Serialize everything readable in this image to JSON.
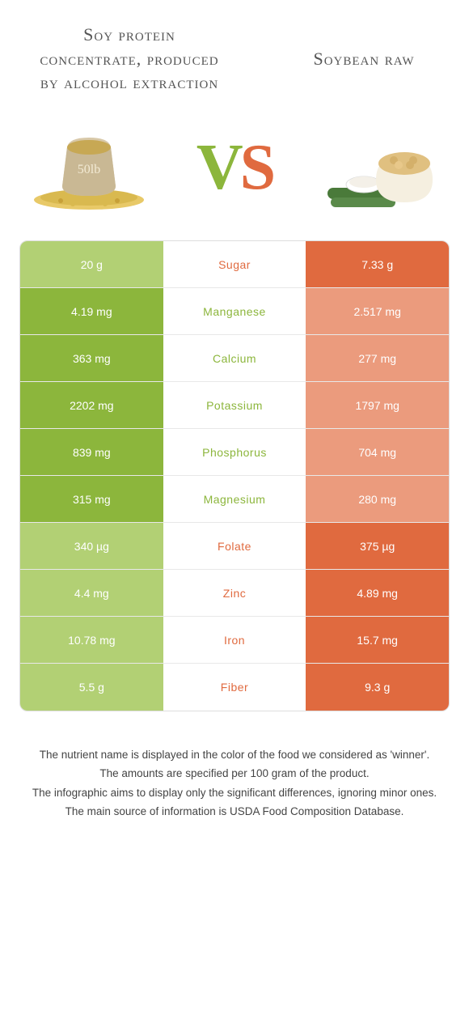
{
  "colors": {
    "green": "#8cb63c",
    "green_loser": "#b2d074",
    "orange": "#e06a3f",
    "orange_loser": "#eb9b7d",
    "text": "#444444",
    "border": "#dddddd"
  },
  "header": {
    "left_title": "Soy protein concentrate, produced by alcohol extraction",
    "right_title": "Soybean raw",
    "vs_v": "V",
    "vs_s": "S"
  },
  "rows": [
    {
      "label": "Sugar",
      "left": "20 g",
      "right": "7.33 g",
      "winner": "right"
    },
    {
      "label": "Manganese",
      "left": "4.19 mg",
      "right": "2.517 mg",
      "winner": "left"
    },
    {
      "label": "Calcium",
      "left": "363 mg",
      "right": "277 mg",
      "winner": "left"
    },
    {
      "label": "Potassium",
      "left": "2202 mg",
      "right": "1797 mg",
      "winner": "left"
    },
    {
      "label": "Phosphorus",
      "left": "839 mg",
      "right": "704 mg",
      "winner": "left"
    },
    {
      "label": "Magnesium",
      "left": "315 mg",
      "right": "280 mg",
      "winner": "left"
    },
    {
      "label": "Folate",
      "left": "340 µg",
      "right": "375 µg",
      "winner": "right"
    },
    {
      "label": "Zinc",
      "left": "4.4 mg",
      "right": "4.89 mg",
      "winner": "right"
    },
    {
      "label": "Iron",
      "left": "10.78 mg",
      "right": "15.7 mg",
      "winner": "right"
    },
    {
      "label": "Fiber",
      "left": "5.5 g",
      "right": "9.3 g",
      "winner": "right"
    }
  ],
  "footer": {
    "line1": "The nutrient name is displayed in the color of the food we considered as 'winner'.",
    "line2": "The amounts are specified per 100 gram of the product.",
    "line3": "The infographic aims to display only the significant differences, ignoring minor ones.",
    "line4": "The main source of information is USDA Food Composition Database."
  }
}
